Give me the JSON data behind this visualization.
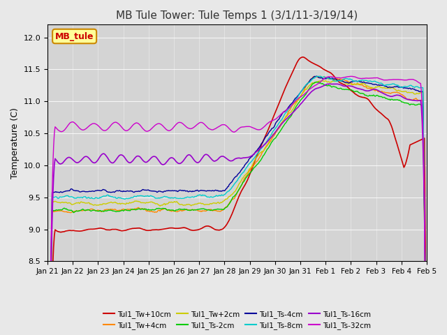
{
  "title": "MB Tule Tower: Tule Temps 1 (3/1/11-3/19/14)",
  "ylabel": "Temperature (C)",
  "ylim": [
    8.5,
    12.2
  ],
  "yticks": [
    8.5,
    9.0,
    9.5,
    10.0,
    10.5,
    11.0,
    11.5,
    12.0
  ],
  "background_color": "#e8e8e8",
  "plot_bg_color": "#d4d4d4",
  "series": [
    {
      "name": "Tul1_Tw+10cm",
      "color": "#cc0000",
      "lw": 1.2
    },
    {
      "name": "Tul1_Tw+4cm",
      "color": "#ff8800",
      "lw": 1.0
    },
    {
      "name": "Tul1_Tw+2cm",
      "color": "#cccc00",
      "lw": 1.0
    },
    {
      "name": "Tul1_Ts-2cm",
      "color": "#00cc00",
      "lw": 1.0
    },
    {
      "name": "Tul1_Ts-4cm",
      "color": "#000099",
      "lw": 1.0
    },
    {
      "name": "Tul1_Ts-8cm",
      "color": "#00cccc",
      "lw": 1.0
    },
    {
      "name": "Tul1_Ts-16cm",
      "color": "#9900cc",
      "lw": 1.2
    },
    {
      "name": "Tul1_Ts-32cm",
      "color": "#cc00cc",
      "lw": 1.0
    }
  ],
  "xtick_labels": [
    "Jan 21",
    "Jan 22",
    "Jan 23",
    "Jan 24",
    "Jan 25",
    "Jan 26",
    "Jan 27",
    "Jan 28",
    "Jan 29",
    "Jan 30",
    "Jan 31",
    "Feb 1",
    "Feb 2",
    "Feb 3",
    "Feb 4",
    "Feb 5"
  ],
  "legend_box_color": "#ffff99",
  "legend_box_edge": "#cc8800",
  "legend_label": "MB_tule",
  "n_points": 500
}
